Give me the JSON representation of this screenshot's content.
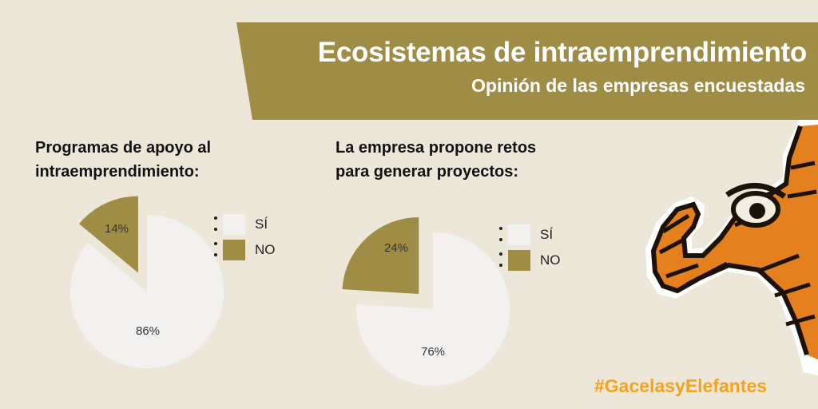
{
  "header": {
    "title": "Ecosistemas de intraemprendimiento",
    "subtitle": "Opinión de las empresas encuestadas",
    "band_color": "#a08d45"
  },
  "footer": {
    "hashtag": "#GacelasyElefantes",
    "hashtag_color": "#f4a31a"
  },
  "mascot": {
    "icon": "elephant-head-icon"
  },
  "chart_data": [
    {
      "type": "pie",
      "title": "Programas de apoyo al\nintraemprendimiento:",
      "categories": [
        "SÍ",
        "NO"
      ],
      "values": [
        86,
        14
      ],
      "data_labels": [
        "86%",
        "14%"
      ],
      "colors": [
        "#f3f1ef",
        "#a08d45"
      ],
      "legend": "right"
    },
    {
      "type": "pie",
      "title": "La empresa propone retos\npara generar proyectos:",
      "categories": [
        "SÍ",
        "NO"
      ],
      "values": [
        76,
        24
      ],
      "data_labels": [
        "76%",
        "24%"
      ],
      "colors": [
        "#f3f1ef",
        "#a08d45"
      ],
      "legend": "right"
    }
  ]
}
